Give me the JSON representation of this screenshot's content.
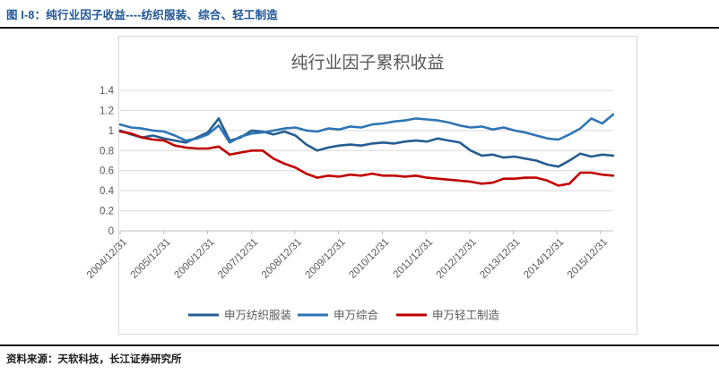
{
  "page": {
    "figure_label": "图 I-8：纯行业因子收益----纺织服装、综合、轻工制造",
    "source_note": "资料来源：天软科技，长江证券研究所"
  },
  "colors": {
    "header_text": "#1F5597",
    "title_text": "#595959",
    "axis_text": "#595959",
    "gridline": "#D9D9D9",
    "axis_line": "#BFBFBF",
    "chart_border": "#D9D9D9",
    "rule": "#1A1A1A"
  },
  "chart_data": {
    "type": "line",
    "title": "纯行业因子累积收益",
    "x_tick_labels": [
      "2004/12/31",
      "2005/12/31",
      "2006/12/31",
      "2007/12/31",
      "2008/12/31",
      "2009/12/31",
      "2010/12/31",
      "2011/12/31",
      "2012/12/31",
      "2013/12/31",
      "2014/12/31",
      "2015/12/31"
    ],
    "y_tick_labels": [
      "0",
      "0.2",
      "0.4",
      "0.6",
      "0.8",
      "1",
      "1.2",
      "1.4"
    ],
    "y_ticks": [
      0,
      0.2,
      0.4,
      0.6,
      0.8,
      1,
      1.2,
      1.4
    ],
    "ylim": [
      0,
      1.5
    ],
    "grid": true,
    "legend_position": "bottom",
    "points_per_year": 4,
    "x_range": [
      "2004/12/31",
      "2016/03/31"
    ],
    "series": [
      {
        "name": "申万纺织服装",
        "color": "#255E91",
        "values": [
          1.0,
          0.96,
          0.93,
          0.95,
          0.92,
          0.9,
          0.88,
          0.93,
          0.98,
          1.12,
          0.9,
          0.93,
          1.0,
          0.99,
          0.96,
          0.99,
          0.95,
          0.86,
          0.8,
          0.83,
          0.85,
          0.86,
          0.85,
          0.87,
          0.88,
          0.87,
          0.89,
          0.9,
          0.89,
          0.92,
          0.9,
          0.88,
          0.8,
          0.75,
          0.76,
          0.73,
          0.74,
          0.72,
          0.7,
          0.66,
          0.64,
          0.7,
          0.77,
          0.74,
          0.76,
          0.75
        ]
      },
      {
        "name": "申万综合",
        "color": "#2E75B6",
        "values": [
          1.06,
          1.03,
          1.02,
          1.0,
          0.99,
          0.95,
          0.9,
          0.92,
          0.96,
          1.05,
          0.88,
          0.94,
          0.97,
          0.98,
          1.0,
          1.02,
          1.03,
          1.0,
          0.99,
          1.02,
          1.01,
          1.04,
          1.03,
          1.06,
          1.07,
          1.09,
          1.1,
          1.12,
          1.11,
          1.1,
          1.08,
          1.05,
          1.03,
          1.04,
          1.01,
          1.03,
          1.0,
          0.98,
          0.95,
          0.92,
          0.91,
          0.96,
          1.02,
          1.12,
          1.07,
          1.16
        ]
      },
      {
        "name": "申万轻工制造",
        "color": "#C00000",
        "values": [
          0.99,
          0.97,
          0.93,
          0.91,
          0.9,
          0.85,
          0.83,
          0.82,
          0.82,
          0.84,
          0.76,
          0.78,
          0.8,
          0.8,
          0.72,
          0.67,
          0.63,
          0.57,
          0.53,
          0.55,
          0.54,
          0.56,
          0.55,
          0.57,
          0.55,
          0.55,
          0.54,
          0.55,
          0.53,
          0.52,
          0.51,
          0.5,
          0.49,
          0.47,
          0.48,
          0.52,
          0.52,
          0.53,
          0.53,
          0.5,
          0.45,
          0.47,
          0.58,
          0.58,
          0.56,
          0.55
        ]
      }
    ]
  }
}
